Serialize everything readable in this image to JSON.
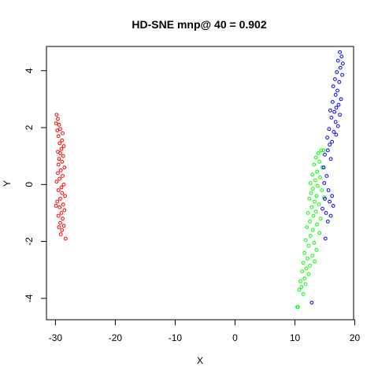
{
  "chart_data": {
    "type": "scatter",
    "title": "HD-SNE mnp@ 40 = 0.902",
    "xlabel": "X",
    "ylabel": "Y",
    "xlim": [
      -31.5,
      19.8
    ],
    "ylim": [
      -4.75,
      4.85
    ],
    "x_ticks": [
      -30,
      -20,
      -10,
      0,
      10,
      20
    ],
    "y_ticks": [
      -4,
      -2,
      0,
      2,
      4
    ],
    "grid": false,
    "legend": "none",
    "series": [
      {
        "color": "#ff0000",
        "points": [
          [
            -29.8,
            2.45
          ],
          [
            -29.6,
            2.3
          ],
          [
            -29.9,
            2.15
          ],
          [
            -29.4,
            2.1
          ],
          [
            -29.2,
            1.95
          ],
          [
            -29.7,
            1.9
          ],
          [
            -28.8,
            1.8
          ],
          [
            -29.5,
            1.7
          ],
          [
            -28.9,
            1.55
          ],
          [
            -29.3,
            1.45
          ],
          [
            -28.6,
            1.35
          ],
          [
            -29.0,
            1.25
          ],
          [
            -29.6,
            1.15
          ],
          [
            -29.2,
            1.1
          ],
          [
            -28.7,
            1.0
          ],
          [
            -29.4,
            0.9
          ],
          [
            -28.9,
            0.8
          ],
          [
            -29.5,
            0.7
          ],
          [
            -28.5,
            0.6
          ],
          [
            -29.1,
            0.5
          ],
          [
            -29.6,
            0.4
          ],
          [
            -28.8,
            0.3
          ],
          [
            -29.3,
            0.2
          ],
          [
            -29.8,
            0.1
          ],
          [
            -28.6,
            0.0
          ],
          [
            -29.0,
            -0.1
          ],
          [
            -29.5,
            -0.2
          ],
          [
            -28.9,
            -0.3
          ],
          [
            -28.4,
            -0.4
          ],
          [
            -29.2,
            -0.5
          ],
          [
            -29.7,
            -0.6
          ],
          [
            -28.7,
            -0.7
          ],
          [
            -29.3,
            -0.8
          ],
          [
            -29.9,
            -0.75
          ],
          [
            -28.5,
            -0.9
          ],
          [
            -29.0,
            -1.0
          ],
          [
            -29.5,
            -1.1
          ],
          [
            -28.8,
            -1.2
          ],
          [
            -29.2,
            -1.35
          ],
          [
            -28.6,
            -1.45
          ],
          [
            -29.4,
            -1.5
          ],
          [
            -28.9,
            -1.6
          ],
          [
            -29.1,
            -1.75
          ],
          [
            -28.3,
            -1.9
          ]
        ]
      },
      {
        "color": "#00ff00",
        "points": [
          [
            14.4,
            1.2
          ],
          [
            13.9,
            1.1
          ],
          [
            14.8,
            1.2
          ],
          [
            13.5,
            0.95
          ],
          [
            14.1,
            0.8
          ],
          [
            13.2,
            0.7
          ],
          [
            14.6,
            0.6
          ],
          [
            13.7,
            0.45
          ],
          [
            12.9,
            0.35
          ],
          [
            14.2,
            0.25
          ],
          [
            13.4,
            0.15
          ],
          [
            12.6,
            0.05
          ],
          [
            13.8,
            -0.05
          ],
          [
            13.0,
            -0.15
          ],
          [
            14.5,
            -0.2
          ],
          [
            12.7,
            -0.3
          ],
          [
            13.6,
            -0.4
          ],
          [
            14.9,
            -0.45
          ],
          [
            12.4,
            -0.5
          ],
          [
            13.3,
            -0.6
          ],
          [
            14.0,
            -0.7
          ],
          [
            12.8,
            -0.8
          ],
          [
            13.5,
            -0.95
          ],
          [
            12.2,
            -1.0
          ],
          [
            13.1,
            -1.1
          ],
          [
            14.3,
            -1.2
          ],
          [
            12.5,
            -1.3
          ],
          [
            13.7,
            -1.4
          ],
          [
            12.0,
            -1.5
          ],
          [
            13.0,
            -1.6
          ],
          [
            14.1,
            -1.7
          ],
          [
            12.6,
            -1.8
          ],
          [
            11.8,
            -1.95
          ],
          [
            13.2,
            -2.05
          ],
          [
            12.3,
            -2.15
          ],
          [
            13.6,
            -2.3
          ],
          [
            11.6,
            -2.4
          ],
          [
            12.9,
            -2.5
          ],
          [
            12.1,
            -2.6
          ],
          [
            13.3,
            -2.7
          ],
          [
            11.4,
            -2.75
          ],
          [
            12.5,
            -2.85
          ],
          [
            11.9,
            -2.95
          ],
          [
            11.2,
            -3.05
          ],
          [
            12.3,
            -3.15
          ],
          [
            11.6,
            -3.3
          ],
          [
            10.9,
            -3.4
          ],
          [
            11.8,
            -3.5
          ],
          [
            11.1,
            -3.6
          ],
          [
            10.7,
            -3.7
          ],
          [
            11.4,
            -3.85
          ],
          [
            10.5,
            -4.3
          ],
          [
            10.4,
            -4.3
          ]
        ]
      },
      {
        "color": "#0000ff",
        "points": [
          [
            17.5,
            4.65
          ],
          [
            17.8,
            4.5
          ],
          [
            17.2,
            4.35
          ],
          [
            18.0,
            4.25
          ],
          [
            17.6,
            4.1
          ],
          [
            17.0,
            3.95
          ],
          [
            17.9,
            3.85
          ],
          [
            16.7,
            3.7
          ],
          [
            17.4,
            3.6
          ],
          [
            16.4,
            3.45
          ],
          [
            17.1,
            3.3
          ],
          [
            16.8,
            3.15
          ],
          [
            17.7,
            3.0
          ],
          [
            16.3,
            2.9
          ],
          [
            17.3,
            2.8
          ],
          [
            16.9,
            2.7
          ],
          [
            15.9,
            2.6
          ],
          [
            16.6,
            2.55
          ],
          [
            17.5,
            2.45
          ],
          [
            16.1,
            2.35
          ],
          [
            16.8,
            2.2
          ],
          [
            17.2,
            2.05
          ],
          [
            15.7,
            1.95
          ],
          [
            16.5,
            1.85
          ],
          [
            16.9,
            1.75
          ],
          [
            15.4,
            1.65
          ],
          [
            16.2,
            1.5
          ],
          [
            15.8,
            1.4
          ],
          [
            15.5,
            1.2
          ],
          [
            15.0,
            1.05
          ],
          [
            16.0,
            0.9
          ],
          [
            14.8,
            0.6
          ],
          [
            15.3,
            0.3
          ],
          [
            14.9,
            0.05
          ],
          [
            15.6,
            -0.2
          ],
          [
            16.2,
            -0.4
          ],
          [
            15.0,
            -0.5
          ],
          [
            15.8,
            -0.6
          ],
          [
            16.4,
            -0.75
          ],
          [
            14.6,
            -0.85
          ],
          [
            15.2,
            -1.0
          ],
          [
            16.0,
            -1.1
          ],
          [
            15.5,
            -1.3
          ],
          [
            15.1,
            -1.9
          ],
          [
            12.8,
            -4.15
          ]
        ]
      }
    ]
  }
}
